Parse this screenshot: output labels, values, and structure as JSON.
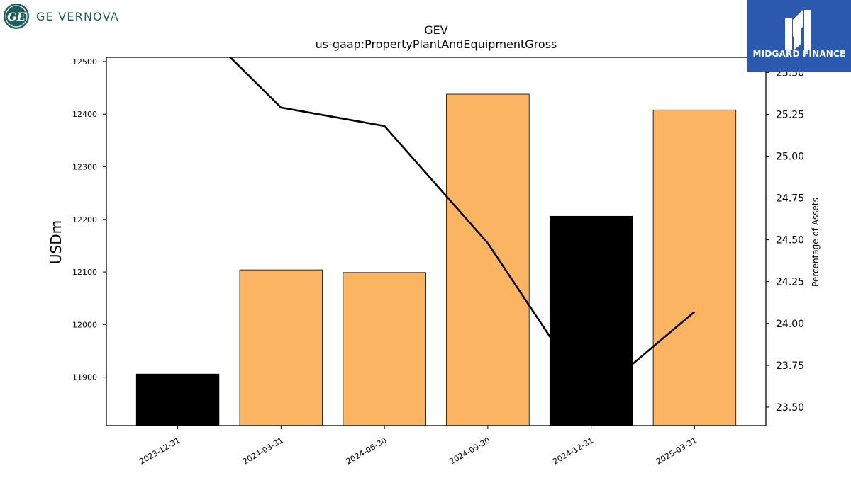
{
  "brand": {
    "name": "GE VERNOVA",
    "logo_text": "GE",
    "watermark": "MIDGARD FINANCE",
    "colors": {
      "ge_teal": "#1a5f5a",
      "watermark_bg": "#2c59b0"
    }
  },
  "chart_data": {
    "type": "bar",
    "title": "GEV",
    "subtitle": "us-gaap:PropertyPlantAndEquipmentGross",
    "ylabel": "USDm",
    "y2label": "Percentage of Assets",
    "categories": [
      "2023-12-31",
      "2024-03-31",
      "2024-06-30",
      "2024-09-30",
      "2024-12-31",
      "2025-03-31"
    ],
    "values": [
      11906,
      12104,
      12099,
      12438,
      12206,
      12408
    ],
    "bar_colors": [
      "#000000",
      "#fbb462",
      "#fbb462",
      "#fbb462",
      "#000000",
      "#fbb462"
    ],
    "ylim": [
      11808,
      12508
    ],
    "yticks": [
      11900,
      12000,
      12100,
      12200,
      12300,
      12400,
      12500
    ],
    "line_series": {
      "values": [
        25.9,
        25.29,
        25.18,
        24.48,
        23.55,
        24.07
      ],
      "color": "#000000"
    },
    "y2lim": [
      23.39,
      25.59
    ],
    "y2ticks": [
      "23.50",
      "23.75",
      "24.00",
      "24.25",
      "24.50",
      "24.75",
      "25.00",
      "25.25",
      "25.50"
    ],
    "grid": false
  }
}
